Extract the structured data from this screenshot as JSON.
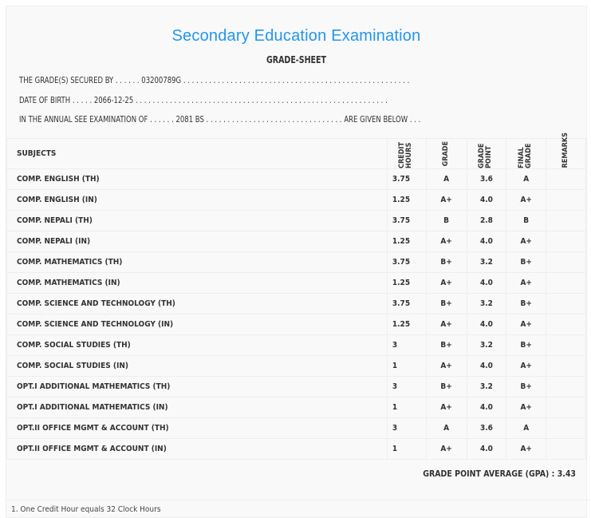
{
  "header": {
    "title": "Secondary Education Examination",
    "subtitle": "GRADE-SHEET"
  },
  "info": {
    "line1": "THE GRADE(S) SECURED BY . . . . . . 03200789G . . . . . . . . . . . . . . . . . . . . . . . . . . . . . . . . . . . . . . . . . . . . . . . . . . . . .",
    "line2": "DATE OF BIRTH . . . . . 2066-12-25 . . . . . . . . . . . . . . . . . . . . . . . . . . . . . . . . . . . . . . . . . . . . . . . . . . . . . . . . . . .",
    "line3": "IN THE ANNUAL SEE EXAMINATION OF . . . . . . 2081 BS . . . . . . . . . . . . . . . . . . . . . . . . . . . . . . . . ARE GIVEN BELOW . . ."
  },
  "columns": {
    "subjects": "SUBJECTS",
    "credit": "CREDIT HOURS",
    "grade": "GRADE",
    "gp": "GRADE POINT",
    "final": "FINAL GRADE",
    "remarks": "REMARKS"
  },
  "rows": [
    {
      "subject": "COMP. ENGLISH (TH)",
      "credit": "3.75",
      "grade": "A",
      "gp": "3.6",
      "final": "A"
    },
    {
      "subject": "COMP. ENGLISH (IN)",
      "credit": "1.25",
      "grade": "A+",
      "gp": "4.0",
      "final": "A+"
    },
    {
      "subject": "COMP. NEPALI (TH)",
      "credit": "3.75",
      "grade": "B",
      "gp": "2.8",
      "final": "B"
    },
    {
      "subject": "COMP. NEPALI (IN)",
      "credit": "1.25",
      "grade": "A+",
      "gp": "4.0",
      "final": "A+"
    },
    {
      "subject": "COMP. MATHEMATICS (TH)",
      "credit": "3.75",
      "grade": "B+",
      "gp": "3.2",
      "final": "B+"
    },
    {
      "subject": "COMP. MATHEMATICS (IN)",
      "credit": "1.25",
      "grade": "A+",
      "gp": "4.0",
      "final": "A+"
    },
    {
      "subject": "COMP. SCIENCE AND TECHNOLOGY (TH)",
      "credit": "3.75",
      "grade": "B+",
      "gp": "3.2",
      "final": "B+"
    },
    {
      "subject": "COMP. SCIENCE AND TECHNOLOGY (IN)",
      "credit": "1.25",
      "grade": "A+",
      "gp": "4.0",
      "final": "A+"
    },
    {
      "subject": "COMP. SOCIAL STUDIES (TH)",
      "credit": "3",
      "grade": "B+",
      "gp": "3.2",
      "final": "B+"
    },
    {
      "subject": "COMP. SOCIAL STUDIES (IN)",
      "credit": "1",
      "grade": "A+",
      "gp": "4.0",
      "final": "A+"
    },
    {
      "subject": "OPT.I ADDITIONAL MATHEMATICS (TH)",
      "credit": "3",
      "grade": "B+",
      "gp": "3.2",
      "final": "B+"
    },
    {
      "subject": "OPT.I ADDITIONAL MATHEMATICS (IN)",
      "credit": "1",
      "grade": "A+",
      "gp": "4.0",
      "final": "A+"
    },
    {
      "subject": "OPT.II OFFICE MGMT & ACCOUNT (TH)",
      "credit": "3",
      "grade": "A",
      "gp": "3.6",
      "final": "A"
    },
    {
      "subject": "OPT.II OFFICE MGMT & ACCOUNT (IN)",
      "credit": "1",
      "grade": "A+",
      "gp": "4.0",
      "final": "A+"
    }
  ],
  "gpa": "GRADE POINT AVERAGE (GPA) : 3.43",
  "note": "1. One Credit Hour equals 32 Clock Hours"
}
